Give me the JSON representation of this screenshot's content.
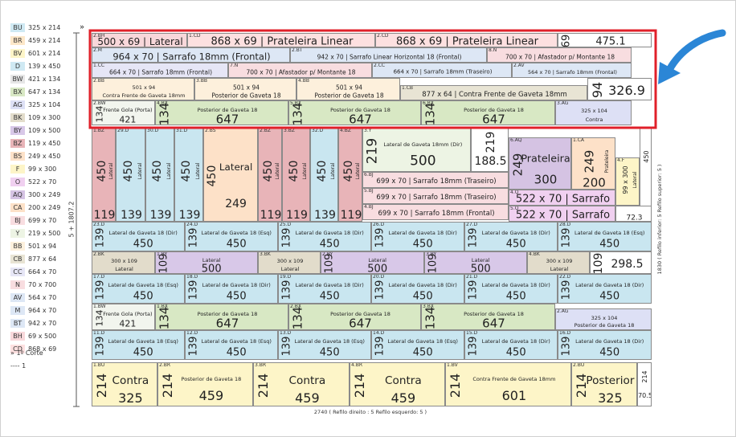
{
  "legend": [
    {
      "code": "BU",
      "size": "325 x 214",
      "color": "#cfe9f3"
    },
    {
      "code": "BR",
      "size": "459 x 214",
      "color": "#fde7c8"
    },
    {
      "code": "BV",
      "size": "601 x 214",
      "color": "#fdf5c8"
    },
    {
      "code": "D",
      "size": "139 x 450",
      "color": "#cfe9f3"
    },
    {
      "code": "BW",
      "size": "421 x 134",
      "color": "#e6e6e6"
    },
    {
      "code": "BX",
      "size": "647 x 134",
      "color": "#d8e8c4"
    },
    {
      "code": "AG",
      "size": "325 x 104",
      "color": "#dde0f5"
    },
    {
      "code": "BK",
      "size": "109 x 300",
      "color": "#e2dccb"
    },
    {
      "code": "BY",
      "size": "109 x 500",
      "color": "#d8c8e8"
    },
    {
      "code": "BZ",
      "size": "119 x 450",
      "color": "#e8b4b8"
    },
    {
      "code": "BS",
      "size": "249 x 450",
      "color": "#fde1c8"
    },
    {
      "code": "F",
      "size": "99 x 300",
      "color": "#fdf5c8"
    },
    {
      "code": "O",
      "size": "522 x 70",
      "color": "#f0d0f0"
    },
    {
      "code": "AQ",
      "size": "300 x 249",
      "color": "#d5c3e3"
    },
    {
      "code": "CA",
      "size": "200 x 249",
      "color": "#fde1c8"
    },
    {
      "code": "BJ",
      "size": "699 x 70",
      "color": "#f8dde0"
    },
    {
      "code": "Y",
      "size": "219 x 500",
      "color": "#edf4e4"
    },
    {
      "code": "BB",
      "size": "501 x 94",
      "color": "#fdf0dc"
    },
    {
      "code": "CB",
      "size": "877 x 64",
      "color": "#e8e4d4"
    },
    {
      "code": "CC",
      "size": "664 x 70",
      "color": "#e6e6f6"
    },
    {
      "code": "N",
      "size": "70 x 700",
      "color": "#f8dde0"
    },
    {
      "code": "AV",
      "size": "564 x 70",
      "color": "#dde7f5"
    },
    {
      "code": "M",
      "size": "964 x 70",
      "color": "#dde7f5"
    },
    {
      "code": "BT",
      "size": "942 x 70",
      "color": "#dde7f5"
    },
    {
      "code": "BH",
      "size": "69 x 500",
      "color": "#f8d7da"
    },
    {
      "code": "CD",
      "size": "868 x 69",
      "color": "#fde0e0"
    }
  ],
  "legend_extra": [
    "» 1º Corte",
    "---- 1"
  ],
  "pieces": [
    {
      "code": "2.BH",
      "text": "500 x 69 | Lateral",
      "color": "#f8d7da"
    },
    {
      "code": "1.CD",
      "text": "868 x 69 | Prateleira Linear",
      "color": "#fde0e0"
    },
    {
      "code": "2.CD",
      "text": "868 x 69 | Prateleira Linear",
      "color": "#fde0e0"
    },
    {
      "side": "69",
      "length": "475.1",
      "color": "#ffffff"
    },
    {
      "code": "2.M",
      "text": "964 x 70 | Sarrafo 18mm (Frontal)",
      "color": "#dde7f5"
    },
    {
      "code": "2.BT",
      "text": "942 x 70 | Sarrafo Linear Horizontal 18 (Frontal)",
      "color": "#dde7f5"
    },
    {
      "code": "8.N",
      "text": "700 x 70 | Afastador p/ Montante 18",
      "color": "#f8dde0"
    },
    {
      "code": "1.CC",
      "text": "664 x 70 | Sarrafo 18mm (Frontal)",
      "color": "#e6e6f6"
    },
    {
      "code": "7.N",
      "text": "700 x 70 | Afastador p/ Montante 18",
      "color": "#f8dde0"
    },
    {
      "code": "2.CC",
      "text": "664 x 70 | Sarrafo 18mm (Traseiro)",
      "color": "#dde7f5"
    },
    {
      "code": "2.AV",
      "text": "564 x 70 | Sarrafo 18mm (Frontal)",
      "color": "#dde7f5"
    },
    {
      "code": "2.BB",
      "text": "501 x 94",
      "label": "Contra Frente de Gaveta 18mm",
      "color": "#fdf0dc"
    },
    {
      "code": "3.BB",
      "text": "501 x 94",
      "label": "Posterior de Gaveta 18",
      "color": "#fdf0dc"
    },
    {
      "code": "4.BB",
      "text": "501 x 94",
      "label": "Posterior de Gaveta 18",
      "color": "#fdf0dc"
    },
    {
      "code": "1.CB",
      "text": "877 x 64 | Contra Frente de Gaveta 18mm",
      "color": "#e8e4d4"
    },
    {
      "side": "94",
      "length": "326.9",
      "color": "#ffffff"
    },
    {
      "code": "2.BW",
      "side": "134",
      "label": "Frente Gola (Porta)",
      "length": "421",
      "color": "#f2f5ee"
    },
    {
      "code": "4.BX",
      "side": "134",
      "label": "Posterior de Gaveta 18",
      "length": "647",
      "color": "#d8e8c4"
    },
    {
      "code": "5.BX",
      "side": "134",
      "label": "Posterior de Gaveta 18",
      "length": "647",
      "color": "#d8e8c4"
    },
    {
      "code": "6.BX",
      "side": "134",
      "label": "Posterior de Gaveta 18",
      "length": "647",
      "color": "#d8e8c4"
    },
    {
      "code": "3.AG",
      "text": "325 x 104",
      "label": "Contra",
      "color": "#dde0f5"
    },
    {
      "code": "1.BZ",
      "side": "450",
      "label": "Lateral",
      "length": "119",
      "color": "#e8b4b8"
    },
    {
      "code": "29.D",
      "side": "450",
      "label": "Lateral",
      "length": "139",
      "color": "#c9e6f0"
    },
    {
      "code": "30.D",
      "side": "450",
      "label": "Lateral",
      "length": "139",
      "color": "#c9e6f0"
    },
    {
      "code": "31.D",
      "side": "450",
      "label": "Lateral",
      "length": "139",
      "color": "#c9e6f0"
    },
    {
      "code": "2.BS",
      "side": "450",
      "label": "Lateral",
      "length": "249",
      "color": "#fde1c8"
    },
    {
      "code": "2.BZ",
      "side": "450",
      "label": "Lateral",
      "length": "119",
      "color": "#e8b4b8"
    },
    {
      "code": "3.BZ",
      "side": "450",
      "label": "Lateral",
      "length": "119",
      "color": "#e8b4b8"
    },
    {
      "code": "32.D",
      "side": "450",
      "label": "Lateral",
      "length": "139",
      "color": "#c9e6f0"
    },
    {
      "code": "4.BZ",
      "side": "450",
      "label": "Lateral",
      "length": "119",
      "color": "#e8b4b8"
    },
    {
      "code": "3.Y",
      "side": "219",
      "label": "Lateral de Gaveta 18mm (Dir)",
      "length": "500",
      "color": "#edf4e4"
    },
    {
      "side": "219",
      "length": "188.5",
      "color": "#ffffff"
    },
    {
      "code": "6.BJ",
      "text": "699 x 70 | Sarrafo 18mm (Traseiro)",
      "color": "#f8dde0"
    },
    {
      "code": "5.BJ",
      "text": "699 x 70 | Sarrafo 18mm (Traseiro)",
      "color": "#f8dde0"
    },
    {
      "code": "4.BJ",
      "text": "699 x 70 | Sarrafo 18mm (Frontal)",
      "color": "#f8dde0"
    },
    {
      "code": "6.AQ",
      "side": "249",
      "label": "Prateleira",
      "length": "300",
      "color": "#d5c3e3"
    },
    {
      "code": "1.CA",
      "side": "249",
      "label": "Prateleira",
      "length": "200",
      "color": "#fde1c8"
    },
    {
      "code": "4.F",
      "side": "99 x 300",
      "label": "Lateral",
      "color": "#fdf5c8"
    },
    {
      "side": "450",
      "color": "#ffffff"
    },
    {
      "code": "4.O",
      "text": "522 x 70 | Sarrafo",
      "color": "#f0d0f0"
    },
    {
      "code": "5.O",
      "text": "522 x 70 | Sarrafo",
      "color": "#f0d0f0"
    },
    {
      "length": "72.3",
      "color": "#ffffff"
    },
    {
      "code": "23.D",
      "side": "139",
      "label": "Lateral de Gaveta 18 (Dir)",
      "length": "450",
      "color": "#c9e6f0"
    },
    {
      "code": "24.D",
      "side": "139",
      "label": "Lateral de Gaveta 18 (Esq)",
      "length": "450",
      "color": "#c9e6f0"
    },
    {
      "code": "25.D",
      "side": "139",
      "label": "Lateral de Gaveta 18 (Dir)",
      "length": "450",
      "color": "#c9e6f0"
    },
    {
      "code": "26.D",
      "side": "139",
      "label": "Lateral de Gaveta 18 (Dir)",
      "length": "450",
      "color": "#c9e6f0"
    },
    {
      "code": "27.D",
      "side": "139",
      "label": "Lateral de Gaveta 18 (Dir)",
      "length": "450",
      "color": "#c9e6f0"
    },
    {
      "code": "28.D",
      "side": "139",
      "label": "Lateral de Gaveta 18 (Esq)",
      "length": "450",
      "color": "#c9e6f0"
    },
    {
      "code": "2.BK",
      "text": "300 x 109",
      "label": "Lateral",
      "color": "#e2dccb"
    },
    {
      "code": "1.BY",
      "side": "109",
      "label": "Lateral",
      "length": "500",
      "color": "#d8c8e8"
    },
    {
      "code": "3.BK",
      "text": "300 x 109",
      "label": "Lateral",
      "color": "#e2dccb"
    },
    {
      "code": "2.BY",
      "side": "109",
      "label": "Lateral",
      "length": "500",
      "color": "#d8c8e8"
    },
    {
      "code": "3.BY",
      "side": "109",
      "label": "Lateral",
      "length": "500",
      "color": "#d8c8e8"
    },
    {
      "code": "4.BK",
      "text": "300 x 109",
      "label": "Lateral",
      "color": "#e2dccb"
    },
    {
      "side": "109",
      "length": "298.5",
      "color": "#ffffff"
    },
    {
      "code": "17.D",
      "side": "139",
      "label": "Lateral de Gaveta 18 (Esq)",
      "length": "450",
      "color": "#c9e6f0"
    },
    {
      "code": "18.D",
      "side": "139",
      "label": "Lateral de Gaveta 18 (Dir)",
      "length": "450",
      "color": "#c9e6f0"
    },
    {
      "code": "19.D",
      "side": "139",
      "label": "Lateral de Gaveta 18 (Dir)",
      "length": "450",
      "color": "#c9e6f0"
    },
    {
      "code": "20.D",
      "side": "139",
      "label": "Lateral de Gaveta 18 (Dir)",
      "length": "450",
      "color": "#c9e6f0"
    },
    {
      "code": "21.D",
      "side": "139",
      "label": "Lateral de Gaveta 18 (Dir)",
      "length": "450",
      "color": "#c9e6f0"
    },
    {
      "code": "22.D",
      "side": "139",
      "label": "Lateral de Gaveta 18 (Dir)",
      "length": "450",
      "color": "#c9e6f0"
    },
    {
      "code": "1.BW",
      "side": "134",
      "label": "Frente Gola (Porta)",
      "length": "421",
      "color": "#f2f5ee"
    },
    {
      "code": "1.BX",
      "side": "134",
      "label": "Posterior de Gaveta 18",
      "length": "647",
      "color": "#d8e8c4"
    },
    {
      "code": "2.BX",
      "side": "134",
      "label": "Posterior de Gaveta 18",
      "length": "647",
      "color": "#d8e8c4"
    },
    {
      "code": "3.BX",
      "side": "134",
      "label": "Posterior de Gaveta 18",
      "length": "647",
      "color": "#d8e8c4"
    },
    {
      "code": "2.AG",
      "text": "325 x 104",
      "label": "Posterior de Gaveta 18",
      "color": "#dde0f5"
    },
    {
      "code": "11.D",
      "side": "139",
      "label": "Lateral de Gaveta 18 (Esq)",
      "length": "450",
      "color": "#c9e6f0"
    },
    {
      "code": "12.D",
      "side": "139",
      "label": "Lateral de Gaveta 18 (Esq)",
      "length": "450",
      "color": "#c9e6f0"
    },
    {
      "code": "13.D",
      "side": "139",
      "label": "Lateral de Gaveta 18 (Esq)",
      "length": "450",
      "color": "#c9e6f0"
    },
    {
      "code": "14.D",
      "side": "139",
      "label": "Lateral de Gaveta 18 (Esq)",
      "length": "450",
      "color": "#c9e6f0"
    },
    {
      "code": "15.D",
      "side": "139",
      "label": "Lateral de Gaveta 18 (Dir)",
      "length": "450",
      "color": "#c9e6f0"
    },
    {
      "code": "16.D",
      "side": "139",
      "label": "Lateral de Gaveta 18 (Dir)",
      "length": "450",
      "color": "#c9e6f0"
    },
    {
      "code": "1.BU",
      "side": "214",
      "label": "Contra",
      "length": "325",
      "color": "#fdf5c8"
    },
    {
      "code": "2.BR",
      "side": "214",
      "label": "Posterior de Gaveta 18",
      "length": "459",
      "color": "#fdf5c8"
    },
    {
      "code": "3.BR",
      "side": "214",
      "label": "Contra",
      "length": "459",
      "color": "#fdf5c8"
    },
    {
      "code": "4.BR",
      "side": "214",
      "label": "Contra",
      "length": "459",
      "color": "#fdf5c8"
    },
    {
      "code": "1.BV",
      "side": "214",
      "label": "Contra Frente de Gaveta 18mm",
      "length": "601",
      "color": "#fdf5c8"
    },
    {
      "code": "2.BU",
      "side": "214",
      "label": "Posterior",
      "length": "325",
      "color": "#fdf5c8"
    },
    {
      "side": "214",
      "length": "70.5",
      "color": "#ffffff"
    }
  ],
  "annotations": {
    "bottom": "2740 ( Refilo direito : 5  Refilo esquerdo: 5 )",
    "right": "1830 ( Refilo inferior: 5  Refilo superior: 5 )",
    "left": "5 + 1807.2",
    "start": "»"
  }
}
